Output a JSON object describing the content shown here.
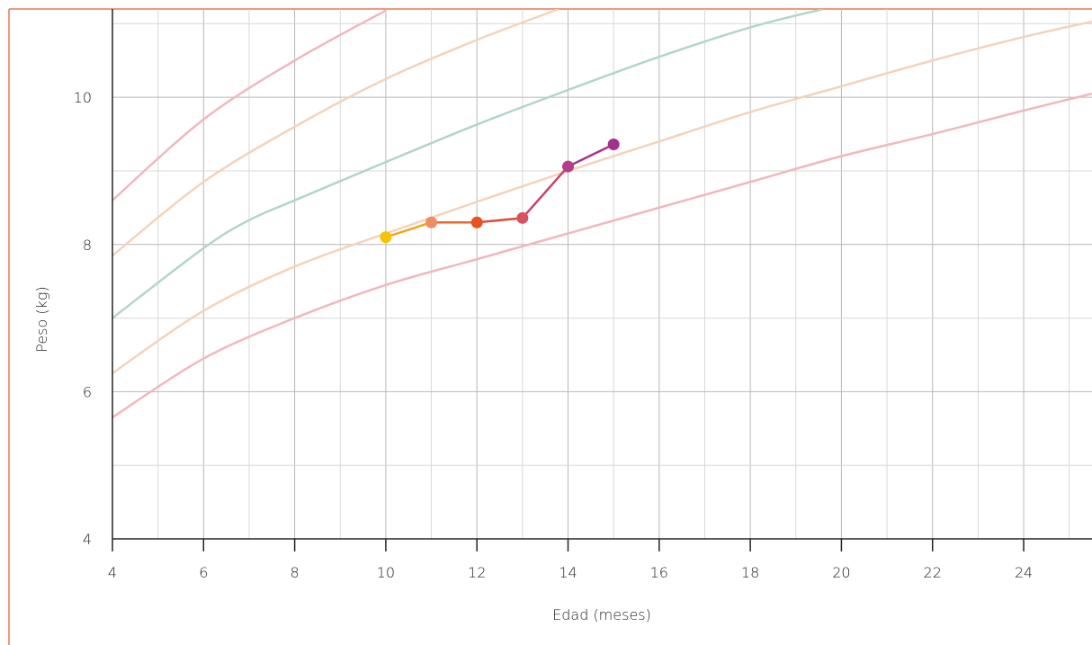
{
  "chart_data": {
    "type": "line",
    "title": "",
    "xlabel": "Edad (meses)",
    "ylabel": "Peso (kg)",
    "xlim": [
      4,
      25.5
    ],
    "ylim": [
      4,
      11.2
    ],
    "x_ticks": [
      4,
      6,
      8,
      10,
      12,
      14,
      16,
      18,
      20,
      22,
      24
    ],
    "y_ticks": [
      4,
      6,
      8,
      10
    ],
    "grid": true,
    "legend": "none",
    "reference_curves": [
      {
        "color": "#efb8bf",
        "x": [
          4,
          6,
          8,
          10,
          12,
          14,
          16,
          18,
          20,
          22,
          24,
          25.5
        ],
        "values": [
          5.65,
          6.45,
          7.0,
          7.45,
          7.8,
          8.15,
          8.5,
          8.85,
          9.2,
          9.5,
          9.82,
          10.05
        ]
      },
      {
        "color": "#f3d3bb",
        "x": [
          4,
          6,
          8,
          10,
          12,
          14,
          16,
          18,
          20,
          22,
          24,
          25.5
        ],
        "values": [
          6.25,
          7.1,
          7.7,
          8.15,
          8.58,
          9.0,
          9.4,
          9.8,
          10.15,
          10.5,
          10.82,
          11.03
        ]
      },
      {
        "color": "#b2d5c9",
        "x": [
          4,
          6,
          7,
          8,
          10,
          12,
          14,
          16,
          18,
          19.6
        ],
        "values": [
          7.0,
          7.95,
          8.33,
          8.6,
          9.12,
          9.63,
          10.1,
          10.55,
          10.95,
          11.2
        ]
      },
      {
        "color": "#f3d3bb",
        "x": [
          4,
          6,
          8,
          10,
          12,
          13.8
        ],
        "values": [
          7.85,
          8.85,
          9.6,
          10.25,
          10.78,
          11.2
        ]
      },
      {
        "color": "#efb8bf",
        "x": [
          4,
          6,
          8,
          10
        ],
        "values": [
          8.6,
          9.7,
          10.5,
          11.18
        ]
      }
    ],
    "series": [
      {
        "x": [
          10,
          11,
          12,
          13,
          14,
          15
        ],
        "values": [
          8.1,
          8.3,
          8.3,
          8.36,
          9.06,
          9.36
        ],
        "point_colors": [
          "#f6c400",
          "#ee8c63",
          "#e8521f",
          "#d9505e",
          "#b53c88",
          "#a62e8e"
        ],
        "segment_colors": [
          "#f0a71a",
          "#ea6a2e",
          "#dc4b38",
          "#c8426a",
          "#a8338c"
        ]
      }
    ],
    "colors": {
      "frame": "#e8775a",
      "grid_major": "#b8b8b8",
      "grid_minor": "#d8d8d8",
      "axis": "#222222"
    }
  }
}
